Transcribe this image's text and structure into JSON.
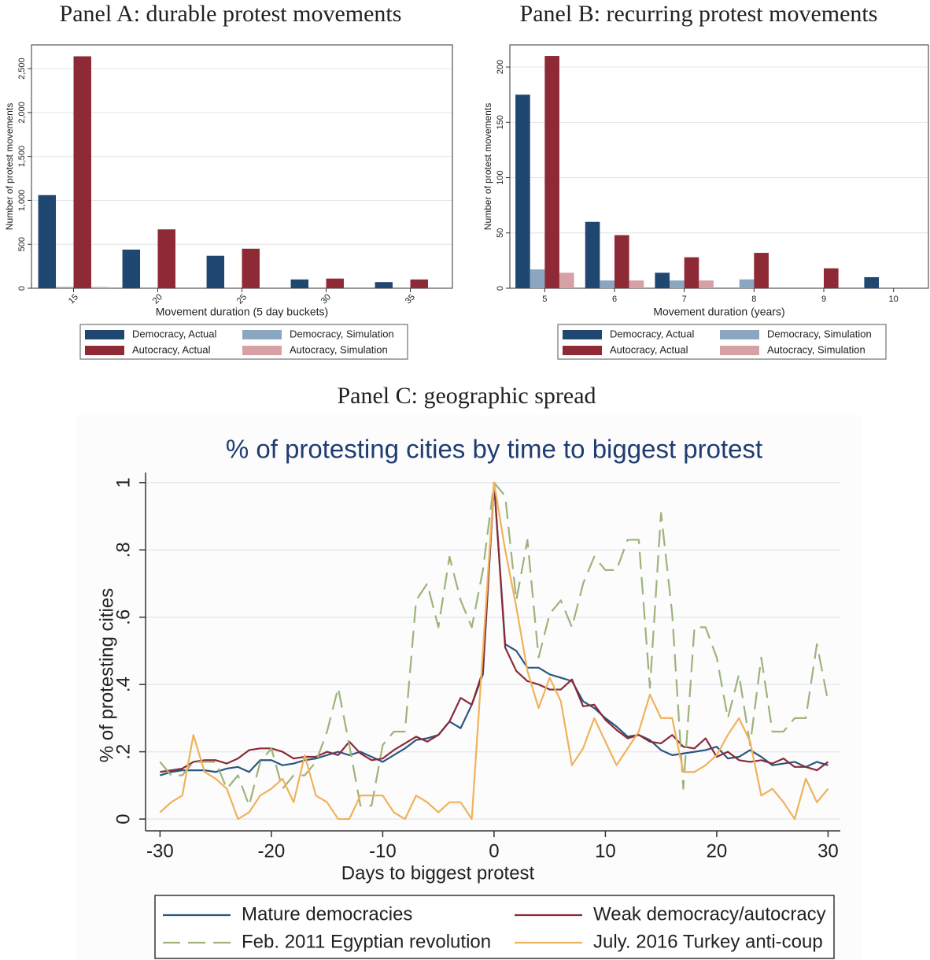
{
  "chart_data": [
    {
      "type": "bar",
      "title": "Panel A: durable protest movements",
      "xlabel": "Movement duration (5 day buckets)",
      "ylabel": "Number of protest movements",
      "categories": [
        "15",
        "20",
        "25",
        "30",
        "35"
      ],
      "series": [
        {
          "name": "Democracy, Actual",
          "color": "#1f4770",
          "values": [
            1060,
            440,
            370,
            100,
            70
          ]
        },
        {
          "name": "Democracy, Simulation",
          "color": "#8aa6c1",
          "values": [
            15,
            0,
            0,
            0,
            0
          ]
        },
        {
          "name": "Autocracy, Actual",
          "color": "#8e2a36",
          "values": [
            2640,
            670,
            450,
            110,
            100
          ]
        },
        {
          "name": "Autocracy, Simulation",
          "color": "#d7a0a5",
          "values": [
            15,
            0,
            0,
            0,
            0
          ]
        }
      ],
      "ylim": [
        0,
        2770
      ],
      "yticks": [
        0,
        500,
        {
          "value": 1000,
          "label": "1,000"
        },
        {
          "value": 1500,
          "label": "1,500"
        },
        {
          "value": 2000,
          "label": "2,000"
        },
        {
          "value": 2500,
          "label": "2,500"
        }
      ],
      "grid": true
    },
    {
      "type": "bar",
      "title": "Panel B: recurring protest movements",
      "xlabel": "Movement duration (years)",
      "ylabel": "Number of protest movements",
      "categories": [
        "5",
        "6",
        "7",
        "8",
        "9",
        "10"
      ],
      "series": [
        {
          "name": "Democracy, Actual",
          "color": "#1f4770",
          "values": [
            175,
            60,
            14,
            0,
            0,
            10
          ]
        },
        {
          "name": "Democracy, Simulation",
          "color": "#8aa6c1",
          "values": [
            17,
            7,
            7,
            8,
            0,
            0
          ]
        },
        {
          "name": "Autocracy, Actual",
          "color": "#8e2a36",
          "values": [
            210,
            48,
            28,
            32,
            18,
            0
          ]
        },
        {
          "name": "Autocracy, Simulation",
          "color": "#d7a0a5",
          "values": [
            14,
            7,
            7,
            0,
            0,
            0
          ]
        }
      ],
      "ylim": [
        0,
        220
      ],
      "yticks": [
        0,
        50,
        100,
        150,
        200
      ],
      "grid": true
    },
    {
      "type": "line",
      "panel_label": "Panel C: geographic spread",
      "title": "% of protesting cities by time to biggest protest",
      "xlabel": "Days to biggest protest",
      "ylabel": "% of protesting cities",
      "x": [
        -30,
        -29,
        -28,
        -27,
        -26,
        -25,
        -24,
        -23,
        -22,
        -21,
        -20,
        -19,
        -18,
        -17,
        -16,
        -15,
        -14,
        -13,
        -12,
        -11,
        -10,
        -9,
        -8,
        -7,
        -6,
        -5,
        -4,
        -3,
        -2,
        -1,
        0,
        1,
        2,
        3,
        4,
        5,
        6,
        7,
        8,
        9,
        10,
        11,
        12,
        13,
        14,
        15,
        16,
        17,
        18,
        19,
        20,
        21,
        22,
        23,
        24,
        25,
        26,
        27,
        28,
        29,
        30
      ],
      "series": [
        {
          "name": "Mature democracies",
          "color": "#2b5580",
          "dash": false,
          "values": [
            0.13,
            0.14,
            0.145,
            0.145,
            0.145,
            0.14,
            0.15,
            0.155,
            0.14,
            0.175,
            0.175,
            0.16,
            0.165,
            0.175,
            0.18,
            0.19,
            0.2,
            0.19,
            0.2,
            0.185,
            0.17,
            0.19,
            0.21,
            0.235,
            0.24,
            0.25,
            0.29,
            0.27,
            0.34,
            0.43,
            1.0,
            0.52,
            0.5,
            0.45,
            0.45,
            0.43,
            0.42,
            0.41,
            0.35,
            0.33,
            0.3,
            0.275,
            0.245,
            0.25,
            0.235,
            0.205,
            0.19,
            0.195,
            0.2,
            0.205,
            0.215,
            0.18,
            0.185,
            0.205,
            0.185,
            0.16,
            0.165,
            0.17,
            0.155,
            0.17,
            0.16
          ]
        },
        {
          "name": "Weak democracy/autocracy",
          "color": "#8b2a35",
          "dash": false,
          "values": [
            0.14,
            0.145,
            0.15,
            0.17,
            0.175,
            0.175,
            0.165,
            0.18,
            0.205,
            0.21,
            0.21,
            0.2,
            0.18,
            0.185,
            0.185,
            0.2,
            0.19,
            0.23,
            0.195,
            0.175,
            0.18,
            0.205,
            0.225,
            0.245,
            0.23,
            0.25,
            0.29,
            0.36,
            0.34,
            0.44,
            1.0,
            0.51,
            0.44,
            0.41,
            0.4,
            0.385,
            0.385,
            0.415,
            0.335,
            0.34,
            0.295,
            0.265,
            0.24,
            0.25,
            0.23,
            0.225,
            0.25,
            0.215,
            0.21,
            0.24,
            0.185,
            0.2,
            0.175,
            0.17,
            0.175,
            0.165,
            0.18,
            0.155,
            0.155,
            0.145,
            0.17
          ]
        },
        {
          "name": "Feb. 2011 Egyptian revolution",
          "color": "#9db37a",
          "dash": true,
          "values": [
            0.17,
            0.13,
            0.13,
            0.17,
            0.17,
            0.17,
            0.09,
            0.13,
            0.04,
            0.17,
            0.21,
            0.09,
            0.13,
            0.13,
            0.17,
            0.26,
            0.39,
            0.22,
            0.04,
            0.04,
            0.22,
            0.26,
            0.26,
            0.65,
            0.7,
            0.57,
            0.78,
            0.65,
            0.57,
            0.74,
            1.0,
            0.96,
            0.65,
            0.83,
            0.48,
            0.61,
            0.65,
            0.57,
            0.7,
            0.78,
            0.74,
            0.74,
            0.83,
            0.83,
            0.39,
            0.91,
            0.61,
            0.09,
            0.57,
            0.57,
            0.48,
            0.3,
            0.43,
            0.22,
            0.48,
            0.26,
            0.26,
            0.3,
            0.3,
            0.52,
            0.35
          ]
        },
        {
          "name": "July. 2016 Turkey anti-coup",
          "color": "#f0b25a",
          "dash": false,
          "values": [
            0.02,
            0.05,
            0.07,
            0.25,
            0.14,
            0.12,
            0.09,
            0,
            0.02,
            0.07,
            0.09,
            0.12,
            0.05,
            0.19,
            0.07,
            0.05,
            0,
            0,
            0.07,
            0.07,
            0.07,
            0.02,
            0,
            0.07,
            0.05,
            0.02,
            0.05,
            0.05,
            0,
            0.5,
            1.0,
            0.8,
            0.63,
            0.44,
            0.33,
            0.42,
            0.35,
            0.16,
            0.21,
            0.3,
            0.23,
            0.16,
            0.21,
            0.26,
            0.37,
            0.3,
            0.3,
            0.14,
            0.14,
            0.16,
            0.19,
            0.25,
            0.3,
            0.23,
            0.07,
            0.09,
            0.05,
            0,
            0.12,
            0.05,
            0.09
          ]
        }
      ],
      "xlim": [
        -31.3,
        31.1
      ],
      "xticks": [
        -30,
        -20,
        -10,
        0,
        10,
        20,
        30
      ],
      "ylim": [
        -0.035,
        1.03
      ],
      "yticks": [
        0,
        {
          "value": 0.2,
          "label": ".2"
        },
        {
          "value": 0.4,
          "label": ".4"
        },
        {
          "value": 0.6,
          "label": ".6"
        },
        {
          "value": 0.8,
          "label": ".8"
        },
        1
      ],
      "grid": true
    }
  ]
}
